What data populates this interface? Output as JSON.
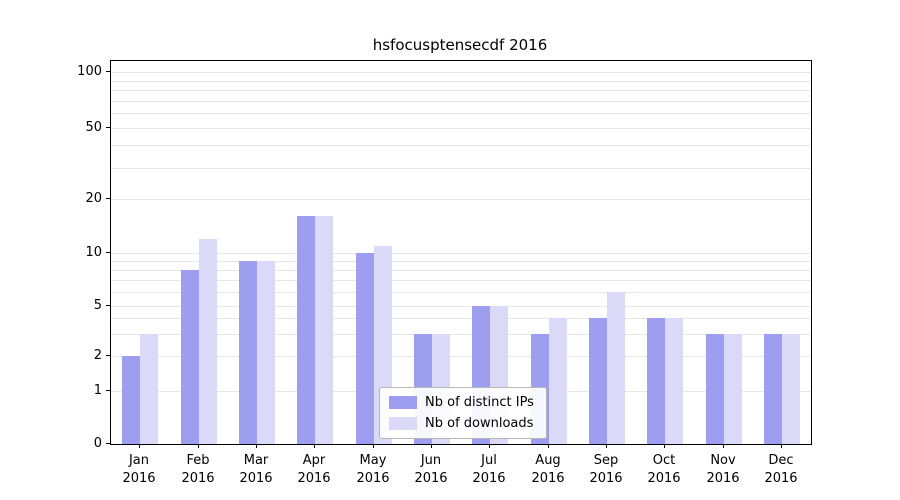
{
  "title": "hsfocusptensecdf 2016",
  "chart_data": {
    "type": "bar",
    "title": "hsfocusptensecdf 2016",
    "categories": [
      "Jan",
      "Feb",
      "Mar",
      "Apr",
      "May",
      "Jun",
      "Jul",
      "Aug",
      "Sep",
      "Oct",
      "Nov",
      "Dec"
    ],
    "year_label": "2016",
    "series": [
      {
        "name": "Nb of distinct IPs",
        "color": "#9e9ef0",
        "values": [
          2,
          8,
          9,
          16,
          10,
          3,
          5,
          3,
          4,
          4,
          3,
          3
        ]
      },
      {
        "name": "Nb of downloads",
        "color": "#dadaf8",
        "values": [
          3,
          12,
          9,
          16,
          11,
          3,
          5,
          4,
          6,
          4,
          3,
          3
        ]
      }
    ],
    "xlabel": "",
    "ylabel": "",
    "yscale": "symlog",
    "y_ticks": [
      0,
      1,
      2,
      5,
      10,
      20,
      50,
      100
    ],
    "grid_values": [
      1,
      2,
      3,
      4,
      5,
      6,
      7,
      8,
      9,
      10,
      20,
      30,
      40,
      50,
      60,
      70,
      80,
      90,
      100
    ],
    "ylim": [
      0,
      110
    ],
    "grid": true,
    "legend_position": "lower center"
  }
}
